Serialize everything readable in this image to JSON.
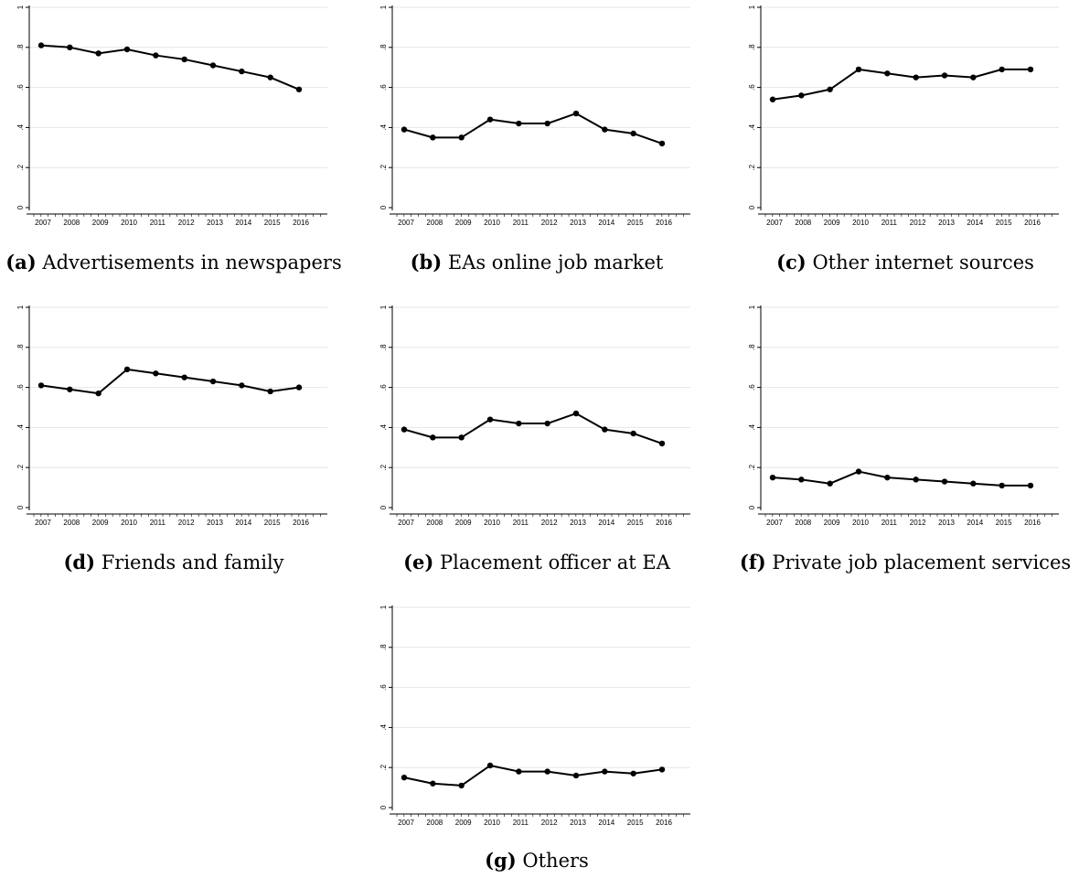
{
  "chart_data": [
    {
      "type": "line",
      "letter": "(a)",
      "title": "Advertisements in newspapers",
      "x": [
        "2007",
        "2008",
        "2009",
        "2010",
        "2011",
        "2012",
        "2013",
        "2014",
        "2015",
        "2016"
      ],
      "y_ticks": [
        "0",
        ".2",
        ".4",
        ".6",
        ".8",
        "1"
      ],
      "ylim": [
        0,
        1
      ],
      "grid": true,
      "series": [
        {
          "values": [
            0.81,
            0.8,
            0.77,
            0.79,
            0.76,
            0.74,
            0.71,
            0.68,
            0.65,
            0.59
          ]
        }
      ]
    },
    {
      "type": "line",
      "letter": "(b)",
      "title": "EAs online job market",
      "x": [
        "2007",
        "2008",
        "2009",
        "2010",
        "2011",
        "2012",
        "2013",
        "2014",
        "2015",
        "2016"
      ],
      "y_ticks": [
        "0",
        ".2",
        ".4",
        ".6",
        ".8",
        "1"
      ],
      "ylim": [
        0,
        1
      ],
      "grid": true,
      "series": [
        {
          "values": [
            0.39,
            0.35,
            0.35,
            0.44,
            0.42,
            0.42,
            0.47,
            0.39,
            0.37,
            0.32
          ]
        }
      ]
    },
    {
      "type": "line",
      "letter": "(c)",
      "title": "Other internet sources",
      "x": [
        "2007",
        "2008",
        "2009",
        "2010",
        "2011",
        "2012",
        "2013",
        "2014",
        "2015",
        "2016"
      ],
      "y_ticks": [
        "0",
        ".2",
        ".4",
        ".6",
        ".8",
        "1"
      ],
      "ylim": [
        0,
        1
      ],
      "grid": true,
      "series": [
        {
          "values": [
            0.54,
            0.56,
            0.59,
            0.69,
            0.67,
            0.65,
            0.66,
            0.65,
            0.69,
            0.69
          ]
        }
      ]
    },
    {
      "type": "line",
      "letter": "(d)",
      "title": "Friends and family",
      "x": [
        "2007",
        "2008",
        "2009",
        "2010",
        "2011",
        "2012",
        "2013",
        "2014",
        "2015",
        "2016"
      ],
      "y_ticks": [
        "0",
        ".2",
        ".4",
        ".6",
        ".8",
        "1"
      ],
      "ylim": [
        0,
        1
      ],
      "grid": true,
      "series": [
        {
          "values": [
            0.61,
            0.59,
            0.57,
            0.69,
            0.67,
            0.65,
            0.63,
            0.61,
            0.58,
            0.6
          ]
        }
      ]
    },
    {
      "type": "line",
      "letter": "(e)",
      "title": "Placement officer at EA",
      "x": [
        "2007",
        "2008",
        "2009",
        "2010",
        "2011",
        "2012",
        "2013",
        "2014",
        "2015",
        "2016"
      ],
      "y_ticks": [
        "0",
        ".2",
        ".4",
        ".6",
        ".8",
        "1"
      ],
      "ylim": [
        0,
        1
      ],
      "grid": true,
      "series": [
        {
          "values": [
            0.39,
            0.35,
            0.35,
            0.44,
            0.42,
            0.42,
            0.47,
            0.39,
            0.37,
            0.32
          ]
        }
      ]
    },
    {
      "type": "line",
      "letter": "(f)",
      "title": "Private job placement services",
      "x": [
        "2007",
        "2008",
        "2009",
        "2010",
        "2011",
        "2012",
        "2013",
        "2014",
        "2015",
        "2016"
      ],
      "y_ticks": [
        "0",
        ".2",
        ".4",
        ".6",
        ".8",
        "1"
      ],
      "ylim": [
        0,
        1
      ],
      "grid": true,
      "series": [
        {
          "values": [
            0.15,
            0.14,
            0.12,
            0.18,
            0.15,
            0.14,
            0.13,
            0.12,
            0.11,
            0.11
          ]
        }
      ]
    },
    {
      "type": "line",
      "letter": "(g)",
      "title": "Others",
      "x": [
        "2007",
        "2008",
        "2009",
        "2010",
        "2011",
        "2012",
        "2013",
        "2014",
        "2015",
        "2016"
      ],
      "y_ticks": [
        "0",
        ".2",
        ".4",
        ".6",
        ".8",
        "1"
      ],
      "ylim": [
        0,
        1
      ],
      "grid": true,
      "series": [
        {
          "values": [
            0.15,
            0.12,
            0.11,
            0.21,
            0.18,
            0.18,
            0.16,
            0.18,
            0.17,
            0.19
          ]
        }
      ]
    }
  ]
}
